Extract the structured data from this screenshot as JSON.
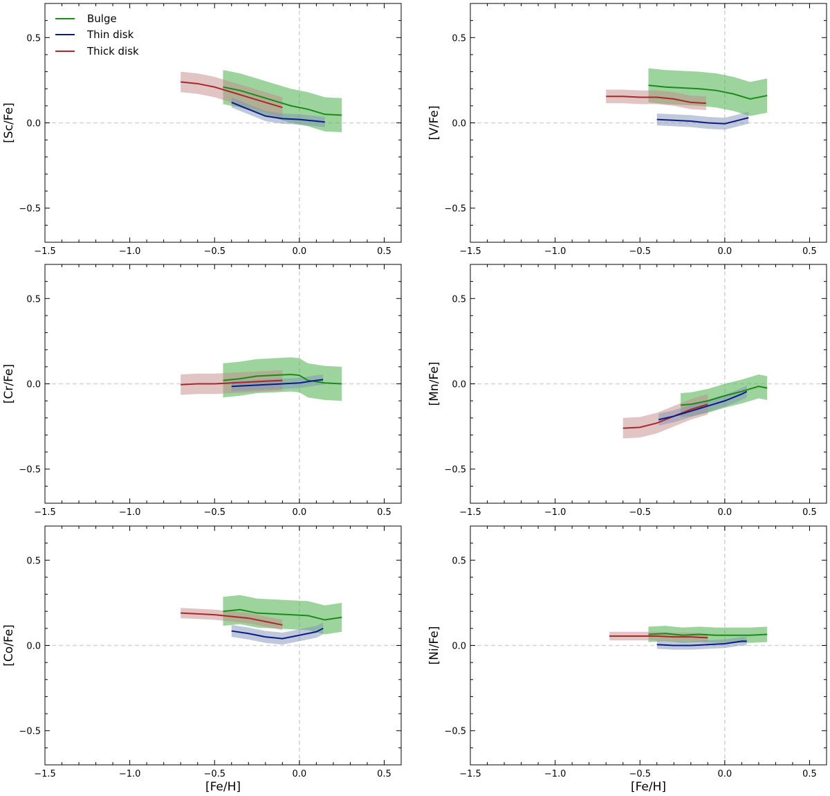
{
  "figure": {
    "legend": [
      {
        "name": "Bulge",
        "color": "#1a8a1a"
      },
      {
        "name": "Thin disk",
        "color": "#0a1a8c"
      },
      {
        "name": "Thick disk",
        "color": "#a82828"
      }
    ]
  },
  "chart_data": [
    {
      "type": "line",
      "ylabel": "[Sc/Fe]",
      "xlabel": "",
      "xlim": [
        -1.5,
        0.6
      ],
      "ylim": [
        -0.7,
        0.7
      ],
      "xticks": [
        "−1.5",
        "−1.0",
        "−0.5",
        "0.0",
        "0.5"
      ],
      "yticks": [
        "−0.5",
        "0.0",
        "0.5"
      ],
      "series": [
        {
          "name": "Bulge",
          "x": [
            -0.45,
            -0.35,
            -0.25,
            -0.15,
            -0.05,
            0.05,
            0.15,
            0.25
          ],
          "y": [
            0.21,
            0.19,
            0.16,
            0.13,
            0.1,
            0.08,
            0.05,
            0.045
          ],
          "band": 0.1
        },
        {
          "name": "Thin disk",
          "x": [
            -0.4,
            -0.3,
            -0.2,
            -0.1,
            0.0,
            0.1,
            0.15
          ],
          "y": [
            0.12,
            0.08,
            0.04,
            0.025,
            0.02,
            0.01,
            0.005
          ],
          "band": 0.03
        },
        {
          "name": "Thick disk",
          "x": [
            -0.7,
            -0.6,
            -0.5,
            -0.4,
            -0.3,
            -0.2,
            -0.1
          ],
          "y": [
            0.24,
            0.23,
            0.21,
            0.18,
            0.15,
            0.12,
            0.09
          ],
          "band": 0.06
        }
      ]
    },
    {
      "type": "line",
      "ylabel": "[V/Fe]",
      "xlabel": "",
      "xlim": [
        -1.5,
        0.6
      ],
      "ylim": [
        -0.7,
        0.7
      ],
      "xticks": [
        "−1.5",
        "−1.0",
        "−0.5",
        "0.0",
        "0.5"
      ],
      "yticks": [
        "−0.5",
        "0.0",
        "0.5"
      ],
      "series": [
        {
          "name": "Bulge",
          "x": [
            -0.45,
            -0.35,
            -0.25,
            -0.15,
            -0.05,
            0.05,
            0.15,
            0.25
          ],
          "y": [
            0.22,
            0.21,
            0.205,
            0.2,
            0.19,
            0.17,
            0.14,
            0.16
          ],
          "band": 0.1
        },
        {
          "name": "Thin disk",
          "x": [
            -0.4,
            -0.3,
            -0.2,
            -0.1,
            0.0,
            0.1,
            0.14
          ],
          "y": [
            0.02,
            0.015,
            0.01,
            0.0,
            -0.005,
            0.02,
            0.03
          ],
          "band": 0.035
        },
        {
          "name": "Thick disk",
          "x": [
            -0.7,
            -0.6,
            -0.5,
            -0.4,
            -0.3,
            -0.2,
            -0.11
          ],
          "y": [
            0.155,
            0.155,
            0.15,
            0.15,
            0.14,
            0.12,
            0.115
          ],
          "band": 0.04
        }
      ]
    },
    {
      "type": "line",
      "ylabel": "[Cr/Fe]",
      "xlabel": "",
      "xlim": [
        -1.5,
        0.6
      ],
      "ylim": [
        -0.7,
        0.7
      ],
      "xticks": [
        "−1.5",
        "−1.0",
        "−0.5",
        "0.0",
        "0.5"
      ],
      "yticks": [
        "−0.5",
        "0.0",
        "0.5"
      ],
      "series": [
        {
          "name": "Bulge",
          "x": [
            -0.45,
            -0.35,
            -0.25,
            -0.15,
            -0.05,
            0.0,
            0.05,
            0.15,
            0.25
          ],
          "y": [
            0.02,
            0.03,
            0.045,
            0.05,
            0.055,
            0.05,
            0.02,
            0.005,
            0.0
          ],
          "band": 0.1
        },
        {
          "name": "Thin disk",
          "x": [
            -0.4,
            -0.3,
            -0.2,
            -0.1,
            0.0,
            0.1,
            0.14
          ],
          "y": [
            -0.015,
            -0.01,
            -0.005,
            0.0,
            0.005,
            0.02,
            0.025
          ],
          "band": 0.03
        },
        {
          "name": "Thick disk",
          "x": [
            -0.7,
            -0.6,
            -0.5,
            -0.4,
            -0.3,
            -0.2,
            -0.1
          ],
          "y": [
            -0.005,
            0.0,
            0.0,
            0.005,
            0.01,
            0.015,
            0.02
          ],
          "band": 0.06
        }
      ]
    },
    {
      "type": "line",
      "ylabel": "[Mn/Fe]",
      "xlabel": "",
      "xlim": [
        -1.5,
        0.6
      ],
      "ylim": [
        -0.7,
        0.7
      ],
      "xticks": [
        "−1.5",
        "−1.0",
        "−0.5",
        "0.0",
        "0.5"
      ],
      "yticks": [
        "−0.5",
        "0.0",
        "0.5"
      ],
      "series": [
        {
          "name": "Bulge",
          "x": [
            -0.26,
            -0.2,
            -0.1,
            0.0,
            0.1,
            0.2,
            0.25
          ],
          "y": [
            -0.125,
            -0.12,
            -0.1,
            -0.07,
            -0.045,
            -0.015,
            -0.025
          ],
          "band": 0.07
        },
        {
          "name": "Thin disk",
          "x": [
            -0.39,
            -0.3,
            -0.2,
            -0.1,
            0.0,
            0.1,
            0.13
          ],
          "y": [
            -0.21,
            -0.19,
            -0.16,
            -0.13,
            -0.1,
            -0.06,
            -0.045
          ],
          "band": 0.035
        },
        {
          "name": "Thick disk",
          "x": [
            -0.6,
            -0.5,
            -0.4,
            -0.3,
            -0.2,
            -0.1
          ],
          "y": [
            -0.26,
            -0.255,
            -0.23,
            -0.19,
            -0.15,
            -0.12
          ],
          "band": 0.06
        }
      ]
    },
    {
      "type": "line",
      "ylabel": "[Co/Fe]",
      "xlabel": "[Fe/H]",
      "xlim": [
        -1.5,
        0.6
      ],
      "ylim": [
        -0.7,
        0.7
      ],
      "xticks": [
        "−1.5",
        "−1.0",
        "−0.5",
        "0.0",
        "0.5"
      ],
      "yticks": [
        "−0.5",
        "0.0",
        "0.5"
      ],
      "series": [
        {
          "name": "Bulge",
          "x": [
            -0.45,
            -0.35,
            -0.25,
            -0.15,
            -0.05,
            0.05,
            0.15,
            0.25
          ],
          "y": [
            0.2,
            0.21,
            0.19,
            0.185,
            0.18,
            0.175,
            0.15,
            0.165
          ],
          "band": 0.085
        },
        {
          "name": "Thin disk",
          "x": [
            -0.4,
            -0.3,
            -0.2,
            -0.1,
            0.0,
            0.1,
            0.14
          ],
          "y": [
            0.085,
            0.07,
            0.05,
            0.04,
            0.06,
            0.08,
            0.1
          ],
          "band": 0.035
        },
        {
          "name": "Thick disk",
          "x": [
            -0.7,
            -0.6,
            -0.5,
            -0.4,
            -0.3,
            -0.2,
            -0.1
          ],
          "y": [
            0.19,
            0.185,
            0.18,
            0.17,
            0.16,
            0.14,
            0.12
          ],
          "band": 0.03
        }
      ]
    },
    {
      "type": "line",
      "ylabel": "[Ni/Fe]",
      "xlabel": "[Fe/H]",
      "xlim": [
        -1.5,
        0.6
      ],
      "ylim": [
        -0.7,
        0.7
      ],
      "xticks": [
        "−1.5",
        "−1.0",
        "−0.5",
        "0.0",
        "0.5"
      ],
      "yticks": [
        "−0.5",
        "0.0",
        "0.5"
      ],
      "series": [
        {
          "name": "Bulge",
          "x": [
            -0.45,
            -0.35,
            -0.25,
            -0.15,
            -0.05,
            0.05,
            0.15,
            0.25
          ],
          "y": [
            0.065,
            0.07,
            0.06,
            0.065,
            0.06,
            0.06,
            0.06,
            0.065
          ],
          "band": 0.045
        },
        {
          "name": "Thin disk",
          "x": [
            -0.4,
            -0.3,
            -0.2,
            -0.1,
            0.0,
            0.1,
            0.13
          ],
          "y": [
            0.005,
            0.0,
            0.0,
            0.005,
            0.01,
            0.025,
            0.025
          ],
          "band": 0.025
        },
        {
          "name": "Thick disk",
          "x": [
            -0.68,
            -0.6,
            -0.5,
            -0.4,
            -0.3,
            -0.2,
            -0.1
          ],
          "y": [
            0.055,
            0.055,
            0.055,
            0.055,
            0.05,
            0.05,
            0.045
          ],
          "band": 0.025
        }
      ]
    }
  ]
}
